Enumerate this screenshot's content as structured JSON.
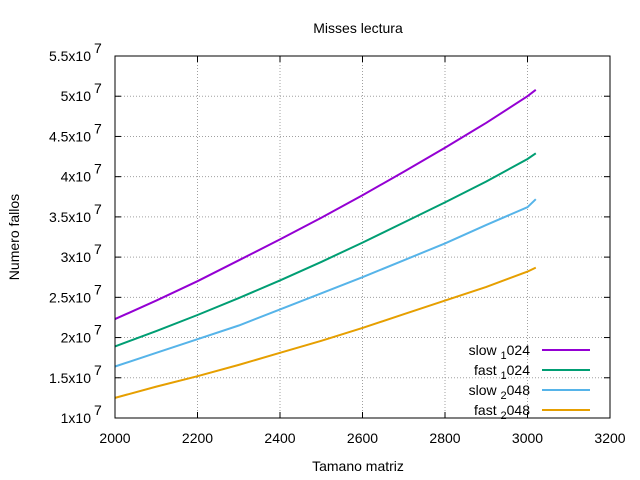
{
  "chart_data": {
    "type": "line",
    "title": "Misses lectura",
    "xlabel": "Tamano matriz",
    "ylabel": "Numero fallos",
    "xlim": [
      2000,
      3200
    ],
    "ylim": [
      10000000,
      55000000
    ],
    "grid": true,
    "legend_position": "bottom-right",
    "x_ticks": [
      2000,
      2200,
      2400,
      2600,
      2800,
      3000,
      3200
    ],
    "x_tick_labels": [
      "2000",
      "2200",
      "2400",
      "2600",
      "2800",
      "3000",
      "3200"
    ],
    "y_ticks": [
      {
        "value": 10000000,
        "mantissa": "1x10",
        "exp": "7"
      },
      {
        "value": 15000000,
        "mantissa": "1.5x10",
        "exp": "7"
      },
      {
        "value": 20000000,
        "mantissa": "2x10",
        "exp": "7"
      },
      {
        "value": 25000000,
        "mantissa": "2.5x10",
        "exp": "7"
      },
      {
        "value": 30000000,
        "mantissa": "3x10",
        "exp": "7"
      },
      {
        "value": 35000000,
        "mantissa": "3.5x10",
        "exp": "7"
      },
      {
        "value": 40000000,
        "mantissa": "4x10",
        "exp": "7"
      },
      {
        "value": 45000000,
        "mantissa": "4.5x10",
        "exp": "7"
      },
      {
        "value": 50000000,
        "mantissa": "5x10",
        "exp": "7"
      },
      {
        "value": 55000000,
        "mantissa": "5.5x10",
        "exp": "7"
      }
    ],
    "series": [
      {
        "name": "slow_1024",
        "legend": {
          "pre": "slow",
          "sub": "1",
          "post": "024"
        },
        "color": "#9400d3",
        "x": [
          2000,
          2100,
          2200,
          2300,
          2400,
          2500,
          2600,
          2700,
          2800,
          2900,
          3000,
          3020
        ],
        "y": [
          22300000,
          24600000,
          27000000,
          29600000,
          32200000,
          34900000,
          37700000,
          40600000,
          43600000,
          46700000,
          50000000,
          50800000
        ]
      },
      {
        "name": "fast_1024",
        "legend": {
          "pre": "fast",
          "sub": "1",
          "post": "024"
        },
        "color": "#009e73",
        "x": [
          2000,
          2100,
          2200,
          2300,
          2400,
          2500,
          2600,
          2700,
          2800,
          2900,
          3000,
          3020
        ],
        "y": [
          18900000,
          20800000,
          22800000,
          24900000,
          27100000,
          29400000,
          31800000,
          34300000,
          36800000,
          39400000,
          42200000,
          42900000
        ]
      },
      {
        "name": "slow_2048",
        "legend": {
          "pre": "slow",
          "sub": "2",
          "post": "048"
        },
        "color": "#56b4e9",
        "x": [
          2000,
          2100,
          2200,
          2300,
          2400,
          2500,
          2600,
          2700,
          2800,
          2900,
          3000,
          3020
        ],
        "y": [
          16400000,
          18100000,
          19800000,
          21500000,
          23500000,
          25500000,
          27500000,
          29600000,
          31700000,
          34000000,
          36200000,
          37200000
        ]
      },
      {
        "name": "fast_2048",
        "legend": {
          "pre": "fast",
          "sub": "2",
          "post": "048"
        },
        "color": "#e69f00",
        "x": [
          2000,
          2100,
          2200,
          2300,
          2400,
          2500,
          2600,
          2700,
          2800,
          2900,
          3000,
          3020
        ],
        "y": [
          12500000,
          13900000,
          15200000,
          16600000,
          18100000,
          19600000,
          21200000,
          22900000,
          24600000,
          26300000,
          28200000,
          28700000
        ]
      }
    ]
  }
}
